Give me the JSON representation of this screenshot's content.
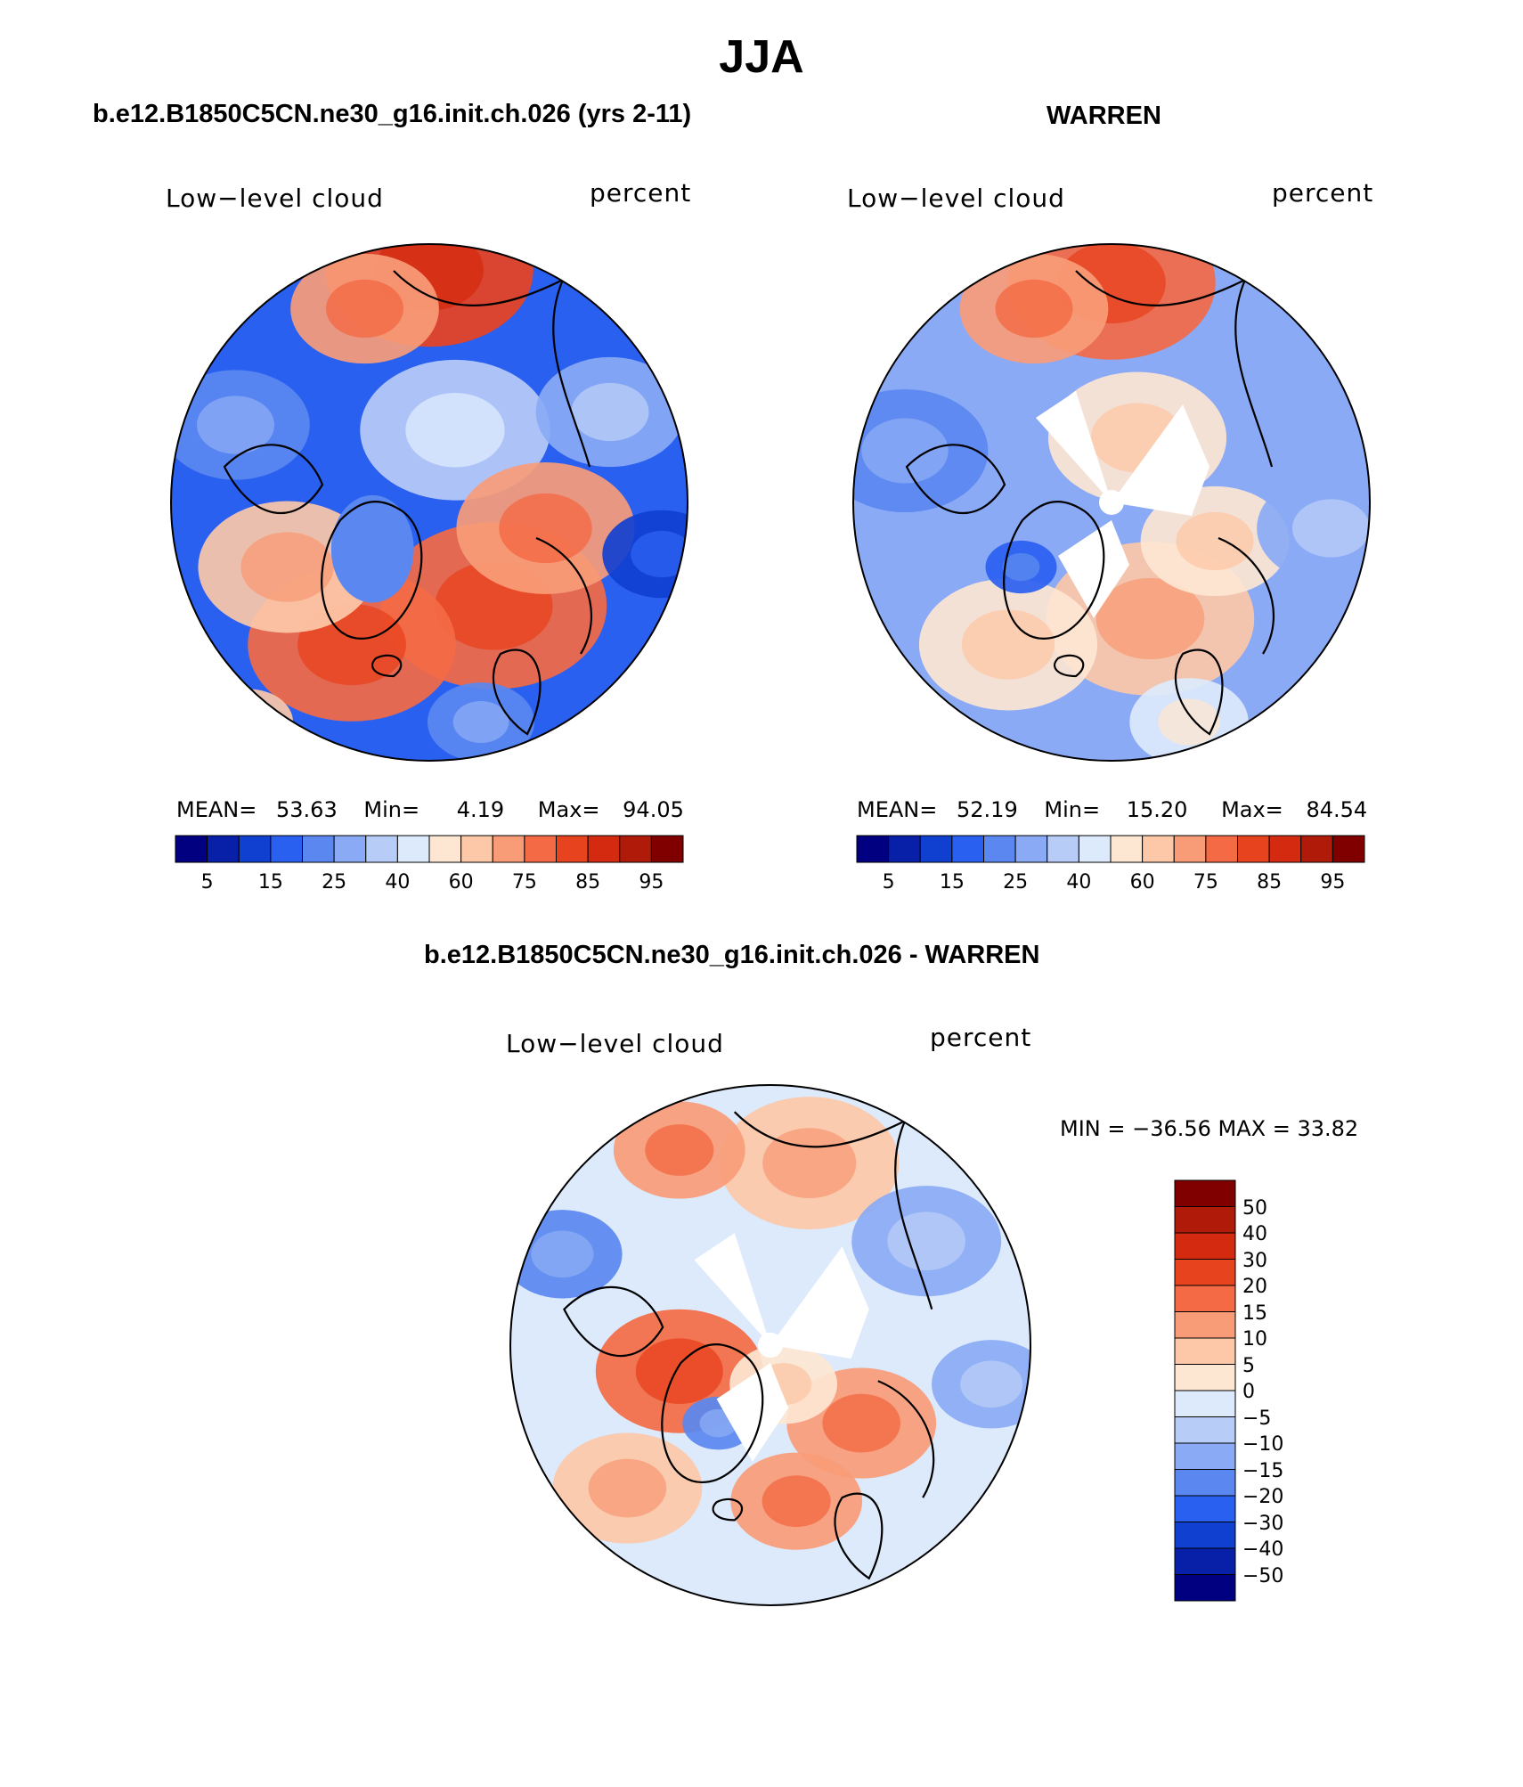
{
  "title": "JJA",
  "panels": [
    {
      "id": "model",
      "header": "b.e12.B1850C5CN.ne30_g16.init.ch.026 (yrs 2-11)",
      "variable_label": "Low−level cloud",
      "units_label": "percent",
      "stats": {
        "mean_label": "MEAN=",
        "mean": "53.63",
        "min_label": "Min=",
        "min": "4.19",
        "max_label": "Max=",
        "max": "94.05"
      },
      "colorbar_ticks": [
        "5",
        "15",
        "25",
        "40",
        "60",
        "75",
        "85",
        "95"
      ]
    },
    {
      "id": "obs",
      "header": "WARREN",
      "variable_label": "Low−level cloud",
      "units_label": "percent",
      "stats": {
        "mean_label": "MEAN=",
        "mean": "52.19",
        "min_label": "Min=",
        "min": "15.20",
        "max_label": "Max=",
        "max": "84.54"
      },
      "colorbar_ticks": [
        "5",
        "15",
        "25",
        "40",
        "60",
        "75",
        "85",
        "95"
      ]
    },
    {
      "id": "diff",
      "header": "b.e12.B1850C5CN.ne30_g16.init.ch.026 - WARREN",
      "variable_label": "Low−level cloud",
      "units_label": "percent",
      "stats": {
        "text": "MIN = −36.56 MAX =   33.82"
      },
      "colorbar_ticks": [
        "50",
        "40",
        "30",
        "20",
        "15",
        "10",
        "5",
        "0",
        "−5",
        "−10",
        "−15",
        "−20",
        "−30",
        "−40",
        "−50"
      ]
    }
  ],
  "palette": [
    "#000080",
    "#0820a8",
    "#1040d0",
    "#2a60f0",
    "#5a88f0",
    "#8aaaf5",
    "#b8ccf8",
    "#dceafc",
    "#fde6d2",
    "#fcc8a8",
    "#f89c78",
    "#f36a45",
    "#e8431f",
    "#d42a10",
    "#b01a08",
    "#800000"
  ],
  "colors": {
    "land_outline": "#000000",
    "missing": "#ffffff"
  }
}
